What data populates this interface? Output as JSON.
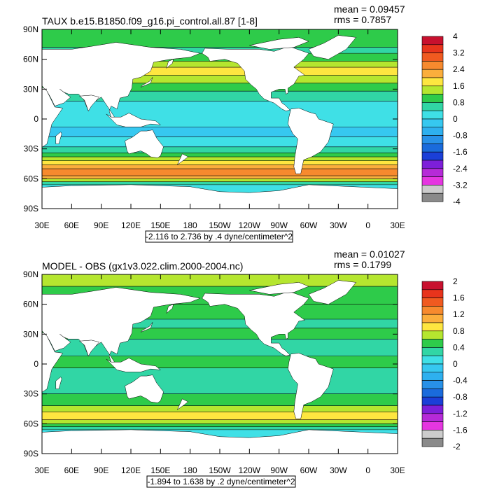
{
  "colors": {
    "land": "#ffffff",
    "frame": "#000000",
    "contour_line": "#000000"
  },
  "panels": [
    {
      "title": "TAUX b.e15.B1850.f09_g16.pi_control.all.87 [1-8]",
      "mean_label": "mean = 0.09457",
      "rms_label": "rms = 0.7857",
      "range_label": "-2.116 to 2.736 by .4 dyne/centimeter^2",
      "lat_labels": [
        "90N",
        "60N",
        "30N",
        "0",
        "30S",
        "60S",
        "90S"
      ],
      "lon_labels": [
        "30E",
        "60E",
        "90E",
        "120E",
        "150E",
        "180",
        "150W",
        "120W",
        "90W",
        "60W",
        "30W",
        "0",
        "30E"
      ],
      "colorbar": {
        "labels": [
          "4",
          "3.2",
          "2.4",
          "1.6",
          "0.8",
          "0",
          "-0.8",
          "-1.6",
          "-2.4",
          "-3.2",
          "-4"
        ],
        "colors": [
          "#c8102e",
          "#e8341c",
          "#f05a20",
          "#f78a2e",
          "#fbae3c",
          "#fee640",
          "#b5e62f",
          "#2ecb4a",
          "#31d6a5",
          "#3fe0e6",
          "#36c8f0",
          "#2eb0ef",
          "#2891e8",
          "#1a6bdc",
          "#1b3fd8",
          "#7d1fd9",
          "#b62ad8",
          "#e536e0",
          "#cccccc",
          "#8a8a8a"
        ]
      },
      "ocean_bands": [
        {
          "lat": 90,
          "color": "#2ecb4a"
        },
        {
          "lat": 72,
          "color": "#31d6a5"
        },
        {
          "lat": 66,
          "color": "#2ecb4a"
        },
        {
          "lat": 58,
          "color": "#b5e62f"
        },
        {
          "lat": 52,
          "color": "#fee640"
        },
        {
          "lat": 44,
          "color": "#b5e62f"
        },
        {
          "lat": 36,
          "color": "#2ecb4a"
        },
        {
          "lat": 28,
          "color": "#31d6a5"
        },
        {
          "lat": 18,
          "color": "#3fe0e6"
        },
        {
          "lat": -8,
          "color": "#36c8f0"
        },
        {
          "lat": -18,
          "color": "#3fe0e6"
        },
        {
          "lat": -28,
          "color": "#31d6a5"
        },
        {
          "lat": -34,
          "color": "#2ecb4a"
        },
        {
          "lat": -38,
          "color": "#b5e62f"
        },
        {
          "lat": -42,
          "color": "#fee640"
        },
        {
          "lat": -46,
          "color": "#fbae3c"
        },
        {
          "lat": -50,
          "color": "#f78a2e"
        },
        {
          "lat": -57,
          "color": "#fbae3c"
        },
        {
          "lat": -60,
          "color": "#b5e62f"
        },
        {
          "lat": -63,
          "color": "#31d6a5"
        },
        {
          "lat": -66,
          "color": "#3fe0e6"
        }
      ]
    },
    {
      "title": "MODEL - OBS (gx1v3.022.clim.2000-2004.nc)",
      "mean_label": "mean = 0.01027",
      "rms_label": "rms = 0.1799",
      "range_label": "-1.894 to 1.638 by .2 dyne/centimeter^2",
      "lat_labels": [
        "90N",
        "60N",
        "30N",
        "0",
        "30S",
        "60S",
        "90S"
      ],
      "lon_labels": [
        "30E",
        "60E",
        "90E",
        "120E",
        "150E",
        "180",
        "150W",
        "120W",
        "90W",
        "60W",
        "30W",
        "0",
        "30E"
      ],
      "colorbar": {
        "labels": [
          "2",
          "1.6",
          "1.2",
          "0.8",
          "0.4",
          "0",
          "-0.4",
          "-0.8",
          "-1.2",
          "-1.6",
          "-2"
        ],
        "colors": [
          "#c8102e",
          "#e8341c",
          "#f05a20",
          "#f78a2e",
          "#fbae3c",
          "#fee640",
          "#b5e62f",
          "#2ecb4a",
          "#31d6a5",
          "#3fe0e6",
          "#36c8f0",
          "#2eb0ef",
          "#2891e8",
          "#1a6bdc",
          "#1b3fd8",
          "#7d1fd9",
          "#b62ad8",
          "#e536e0",
          "#cccccc",
          "#8a8a8a"
        ]
      },
      "ocean_bands": [
        {
          "lat": 90,
          "color": "#b5e62f"
        },
        {
          "lat": 78,
          "color": "#2ecb4a"
        },
        {
          "lat": 60,
          "color": "#2ecb4a"
        },
        {
          "lat": 45,
          "color": "#31d6a5"
        },
        {
          "lat": 36,
          "color": "#2ecb4a"
        },
        {
          "lat": 25,
          "color": "#31d6a5"
        },
        {
          "lat": 8,
          "color": "#2ecb4a"
        },
        {
          "lat": -4,
          "color": "#31d6a5"
        },
        {
          "lat": -30,
          "color": "#2ecb4a"
        },
        {
          "lat": -42,
          "color": "#b5e62f"
        },
        {
          "lat": -48,
          "color": "#fee640"
        },
        {
          "lat": -56,
          "color": "#b5e62f"
        },
        {
          "lat": -60,
          "color": "#2ecb4a"
        },
        {
          "lat": -63,
          "color": "#31d6a5"
        },
        {
          "lat": -66,
          "color": "#3fe0e6"
        }
      ]
    }
  ]
}
